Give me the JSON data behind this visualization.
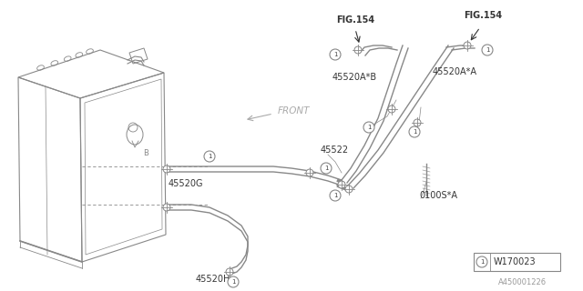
{
  "bg_color": "#ffffff",
  "line_color": "#888888",
  "text_color": "#444444",
  "dark_color": "#333333",
  "fig_width": 6.4,
  "fig_height": 3.2,
  "dpi": 100,
  "labels": {
    "FIG154_left": "FIG.154",
    "FIG154_right": "FIG.154",
    "45520AB": "45520A*B",
    "45520AA": "45520A*A",
    "45522": "45522",
    "45520G": "45520G",
    "45520H": "45520H",
    "0100SA": "0100S*A",
    "W170023": "W170023",
    "FRONT": "FRONT",
    "A450001226": "A450001226"
  }
}
